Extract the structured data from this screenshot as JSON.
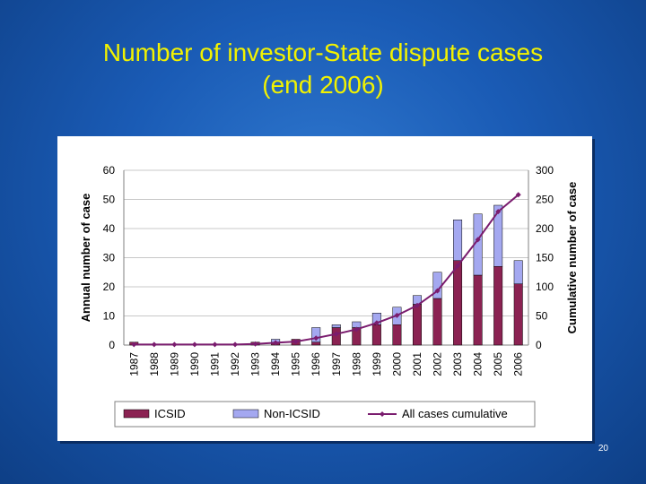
{
  "slide": {
    "title_line1": "Number of investor-State dispute cases",
    "title_line2": "(end 2006)",
    "page_number": "20"
  },
  "colors": {
    "icsid": "#8b2252",
    "non_icsid": "#a4a8f0",
    "cumulative": "#7a1c6e",
    "title": "#f2f200"
  },
  "chart_data": {
    "type": "bar",
    "categories": [
      "1987",
      "1988",
      "1989",
      "1990",
      "1991",
      "1992",
      "1993",
      "1994",
      "1995",
      "1996",
      "1997",
      "1998",
      "1999",
      "2000",
      "2001",
      "2002",
      "2003",
      "2004",
      "2005",
      "2006"
    ],
    "series": [
      {
        "name": "ICSID",
        "kind": "bar",
        "stack": "annual",
        "values": [
          1,
          0,
          0,
          0,
          0,
          0,
          1,
          1,
          2,
          1,
          6,
          6,
          7,
          7,
          14,
          16,
          29,
          24,
          27,
          21
        ]
      },
      {
        "name": "Non-ICSID",
        "kind": "bar",
        "stack": "annual",
        "values": [
          0,
          0,
          0,
          0,
          0,
          0,
          0,
          1,
          0,
          5,
          1,
          2,
          4,
          6,
          3,
          9,
          14,
          21,
          21,
          8
        ]
      },
      {
        "name": "All cases cumulative",
        "kind": "line",
        "axis": "right",
        "values": [
          1,
          1,
          1,
          1,
          1,
          1,
          2,
          4,
          6,
          12,
          19,
          27,
          38,
          51,
          68,
          93,
          136,
          181,
          229,
          258
        ]
      }
    ],
    "ylabel": "Annual number of case",
    "y2label": "Cumulative number of case",
    "ylim": [
      0,
      60
    ],
    "y2lim": [
      0,
      300
    ],
    "yticks": [
      "0",
      "10",
      "20",
      "30",
      "40",
      "50",
      "60"
    ],
    "y2ticks": [
      "0",
      "50",
      "100",
      "150",
      "200",
      "250",
      "300"
    ],
    "legend": {
      "position": "bottom",
      "labels": [
        "ICSID",
        "Non-ICSID",
        "All cases cumulative"
      ]
    },
    "grid": true
  }
}
